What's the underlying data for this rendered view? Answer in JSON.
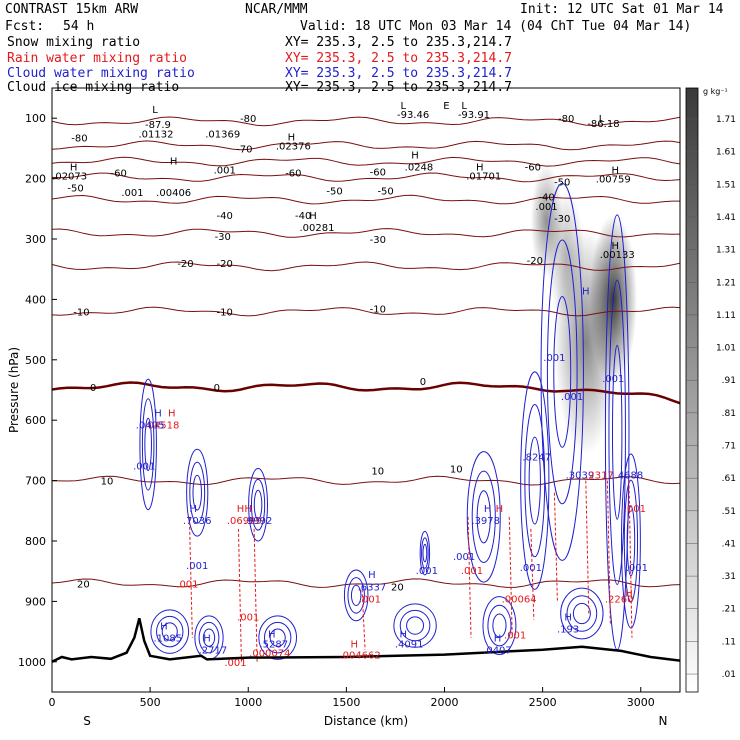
{
  "header": {
    "model": "CONTRAST 15km ARW",
    "center": "NCAR/MMM",
    "init": "Init: 12 UTC Sat 01 Mar 14",
    "fcst_label": "Fcst:",
    "fcst_value": "54 h",
    "valid": "Valid: 18 UTC Mon 03 Mar 14 (04 ChT Tue 04 Mar 14)"
  },
  "fields": [
    {
      "name": "Snow mixing ratio",
      "xy": "XY= 235.3,  2.5 to 235.3,214.7",
      "color": "#000000"
    },
    {
      "name": "Rain water mixing ratio",
      "xy": "XY= 235.3,  2.5 to 235.3,214.7",
      "color": "#e31a1c"
    },
    {
      "name": "Cloud water mixing ratio",
      "xy": "XY= 235.3,  2.5 to 235.3,214.7",
      "color": "#1f1fcf"
    },
    {
      "name": "Cloud ice mixing ratio",
      "xy": "XY= 235.3,  2.5 to 235.3,214.7",
      "color": "#000000"
    }
  ],
  "colors": {
    "temperature": "#7a1010",
    "freezing": "#6b0000",
    "rain": "#e31a1c",
    "cloud": "#1f1fcf",
    "terrain": "#000000"
  },
  "chart_data": {
    "type": "cross-section",
    "xlabel": "Distance (km)",
    "ylabel": "Pressure (hPa)",
    "xlim": [
      0,
      3200
    ],
    "ylim": [
      1050,
      50
    ],
    "x_ticks": [
      0,
      500,
      1000,
      1500,
      2000,
      2500,
      3000
    ],
    "y_ticks": [
      100,
      200,
      300,
      400,
      500,
      600,
      700,
      800,
      900,
      1000
    ],
    "left_end": "S",
    "right_end": "N",
    "colorbar": {
      "unit": "g kg⁻¹",
      "levels": [
        ".01",
        ".11",
        ".21",
        ".31",
        ".41",
        ".51",
        ".61",
        ".71",
        ".81",
        ".91",
        "1.01",
        "1.11",
        "1.21",
        "1.31",
        "1.41",
        "1.51",
        "1.61",
        "1.71"
      ]
    },
    "isotherms": [
      {
        "t": -80,
        "p": 105
      },
      {
        "t": -70,
        "p": 145
      },
      {
        "t": -60,
        "p": 172
      },
      {
        "t": -50,
        "p": 198
      },
      {
        "t": -40,
        "p": 235
      },
      {
        "t": -30,
        "p": 290
      },
      {
        "t": -20,
        "p": 345
      },
      {
        "t": -10,
        "p": 420
      },
      {
        "t": 0,
        "p": 545
      },
      {
        "t": 10,
        "p": 700
      },
      {
        "t": 20,
        "p": 870
      }
    ],
    "isotherm_labels": [
      {
        "text": "-80",
        "x": 1000,
        "p": 100
      },
      {
        "text": "-80",
        "x": 2620,
        "p": 100
      },
      {
        "text": "-80",
        "x": 140,
        "p": 132
      },
      {
        "text": "-70",
        "x": 980,
        "p": 150
      },
      {
        "text": "-60",
        "x": 1230,
        "p": 190
      },
      {
        "text": "-60",
        "x": 340,
        "p": 190
      },
      {
        "text": "-60",
        "x": 1660,
        "p": 188
      },
      {
        "text": "-60",
        "x": 2450,
        "p": 180
      },
      {
        "text": "-50",
        "x": 120,
        "p": 215
      },
      {
        "text": "-50",
        "x": 1440,
        "p": 220
      },
      {
        "text": "-50",
        "x": 1700,
        "p": 220
      },
      {
        "text": "-50",
        "x": 2600,
        "p": 205
      },
      {
        "text": "-40",
        "x": 880,
        "p": 260
      },
      {
        "text": "-40",
        "x": 1280,
        "p": 260
      },
      {
        "text": "-40",
        "x": 2520,
        "p": 230
      },
      {
        "text": "-30",
        "x": 870,
        "p": 295
      },
      {
        "text": "-30",
        "x": 1660,
        "p": 300
      },
      {
        "text": "-30",
        "x": 2600,
        "p": 265
      },
      {
        "text": "-20",
        "x": 680,
        "p": 340
      },
      {
        "text": "-20",
        "x": 880,
        "p": 340
      },
      {
        "text": "-20",
        "x": 2460,
        "p": 335
      },
      {
        "text": "-10",
        "x": 150,
        "p": 420
      },
      {
        "text": "-10",
        "x": 880,
        "p": 420
      },
      {
        "text": "-10",
        "x": 1660,
        "p": 415
      },
      {
        "text": "0",
        "x": 210,
        "p": 545
      },
      {
        "text": "0",
        "x": 840,
        "p": 545
      },
      {
        "text": "0",
        "x": 1890,
        "p": 535
      },
      {
        "text": "10",
        "x": 280,
        "p": 700
      },
      {
        "text": "10",
        "x": 1660,
        "p": 683
      },
      {
        "text": "10",
        "x": 2060,
        "p": 680
      },
      {
        "text": "20",
        "x": 160,
        "p": 870
      },
      {
        "text": "20",
        "x": 1760,
        "p": 875
      }
    ],
    "annotations": [
      {
        "text": "L",
        "x": 525,
        "p": 85,
        "color": "#000000"
      },
      {
        "text": "L",
        "x": 1790,
        "p": 78,
        "color": "#000000"
      },
      {
        "text": "E",
        "x": 2010,
        "p": 78,
        "color": "#000000"
      },
      {
        "text": "L",
        "x": 2100,
        "p": 78,
        "color": "#000000"
      },
      {
        "text": "L",
        "x": 2800,
        "p": 100,
        "color": "#000000"
      },
      {
        "text": "H",
        "x": 1220,
        "p": 130,
        "color": "#000000"
      },
      {
        "text": "H",
        "x": 110,
        "p": 180,
        "color": "#000000"
      },
      {
        "text": "H",
        "x": 620,
        "p": 170,
        "color": "#000000"
      },
      {
        "text": "H",
        "x": 1850,
        "p": 160,
        "color": "#000000"
      },
      {
        "text": "H",
        "x": 2180,
        "p": 180,
        "color": "#000000"
      },
      {
        "text": "H",
        "x": 2870,
        "p": 185,
        "color": "#000000"
      },
      {
        "text": "H",
        "x": 1330,
        "p": 260,
        "color": "#000000"
      },
      {
        "text": "H",
        "x": 2870,
        "p": 310,
        "color": "#000000"
      },
      {
        "text": "-93.46",
        "x": 1840,
        "p": 93,
        "color": "#000000"
      },
      {
        "text": "-93.91",
        "x": 2150,
        "p": 93,
        "color": "#000000"
      },
      {
        "text": "-86.18",
        "x": 2810,
        "p": 108,
        "color": "#000000"
      },
      {
        "text": "-87.9",
        "x": 540,
        "p": 110,
        "color": "#000000"
      },
      {
        "text": ".01132",
        "x": 530,
        "p": 125,
        "color": "#000000"
      },
      {
        "text": ".01369",
        "x": 870,
        "p": 125,
        "color": "#000000"
      },
      {
        "text": ".02376",
        "x": 1230,
        "p": 145,
        "color": "#000000"
      },
      {
        "text": ".0248",
        "x": 1870,
        "p": 180,
        "color": "#000000"
      },
      {
        "text": ".02073",
        "x": 90,
        "p": 195,
        "color": "#000000"
      },
      {
        "text": ".001",
        "x": 880,
        "p": 185,
        "color": "#000000"
      },
      {
        "text": ".01701",
        "x": 2200,
        "p": 195,
        "color": "#000000"
      },
      {
        "text": ".00759",
        "x": 2860,
        "p": 200,
        "color": "#000000"
      },
      {
        "text": ".00406",
        "x": 620,
        "p": 222,
        "color": "#000000"
      },
      {
        "text": ".001",
        "x": 410,
        "p": 222,
        "color": "#000000"
      },
      {
        "text": ".001",
        "x": 2520,
        "p": 245,
        "color": "#000000"
      },
      {
        "text": ".00281",
        "x": 1350,
        "p": 280,
        "color": "#000000"
      },
      {
        "text": ".00133",
        "x": 2880,
        "p": 325,
        "color": "#000000"
      },
      {
        "text": "H",
        "x": 2720,
        "p": 385,
        "color": "#1f1fcf"
      },
      {
        "text": "H",
        "x": 540,
        "p": 587,
        "color": "#1f1fcf"
      },
      {
        "text": "H",
        "x": 610,
        "p": 587,
        "color": "#e31a1c"
      },
      {
        "text": ".04518",
        "x": 560,
        "p": 607,
        "color": "#e31a1c"
      },
      {
        "text": ".0405",
        "x": 500,
        "p": 607,
        "color": "#1f1fcf"
      },
      {
        "text": ".001",
        "x": 2560,
        "p": 495,
        "color": "#1f1fcf"
      },
      {
        "text": ".001",
        "x": 2860,
        "p": 530,
        "color": "#1f1fcf"
      },
      {
        "text": ".001",
        "x": 2650,
        "p": 560,
        "color": "#1f1fcf"
      },
      {
        "text": ".001",
        "x": 470,
        "p": 675,
        "color": "#1f1fcf"
      },
      {
        "text": ".8247",
        "x": 2470,
        "p": 660,
        "color": "#1f1fcf"
      },
      {
        "text": ".3039",
        "x": 2690,
        "p": 690,
        "color": "#1f1fcf"
      },
      {
        "text": ".2317",
        "x": 2790,
        "p": 690,
        "color": "#e31a1c"
      },
      {
        "text": ".4688",
        "x": 2940,
        "p": 690,
        "color": "#1f1fcf"
      },
      {
        "text": "H",
        "x": 2220,
        "p": 745,
        "color": "#1f1fcf"
      },
      {
        "text": "H",
        "x": 2280,
        "p": 745,
        "color": "#e31a1c"
      },
      {
        "text": ".3978",
        "x": 2210,
        "p": 765,
        "color": "#1f1fcf"
      },
      {
        "text": ".7036",
        "x": 740,
        "p": 765,
        "color": "#1f1fcf"
      },
      {
        "text": "H",
        "x": 720,
        "p": 745,
        "color": "#1f1fcf"
      },
      {
        "text": "HH",
        "x": 980,
        "p": 745,
        "color": "#e31a1c"
      },
      {
        "text": ".06999",
        "x": 980,
        "p": 765,
        "color": "#e31a1c"
      },
      {
        "text": ".9992",
        "x": 1050,
        "p": 765,
        "color": "#1f1fcf"
      },
      {
        "text": ".001",
        "x": 2970,
        "p": 745,
        "color": "#e31a1c"
      },
      {
        "text": ".001",
        "x": 2100,
        "p": 825,
        "color": "#1f1fcf"
      },
      {
        "text": ".001",
        "x": 740,
        "p": 840,
        "color": "#1f1fcf"
      },
      {
        "text": ".001",
        "x": 1910,
        "p": 848,
        "color": "#1f1fcf"
      },
      {
        "text": ".001",
        "x": 2140,
        "p": 848,
        "color": "#e31a1c"
      },
      {
        "text": ".001",
        "x": 2440,
        "p": 843,
        "color": "#1f1fcf"
      },
      {
        "text": ".001",
        "x": 2980,
        "p": 843,
        "color": "#1f1fcf"
      },
      {
        "text": ".001",
        "x": 690,
        "p": 870,
        "color": "#e31a1c"
      },
      {
        "text": "H",
        "x": 1630,
        "p": 855,
        "color": "#1f1fcf"
      },
      {
        "text": ".6337",
        "x": 1630,
        "p": 875,
        "color": "#1f1fcf"
      },
      {
        "text": ".001",
        "x": 1620,
        "p": 895,
        "color": "#e31a1c"
      },
      {
        "text": ".00064",
        "x": 2380,
        "p": 895,
        "color": "#e31a1c"
      },
      {
        "text": ".2260",
        "x": 2890,
        "p": 895,
        "color": "#e31a1c"
      },
      {
        "text": "H",
        "x": 2940,
        "p": 885,
        "color": "#e31a1c"
      },
      {
        "text": ".001",
        "x": 1000,
        "p": 925,
        "color": "#e31a1c"
      },
      {
        "text": "H",
        "x": 570,
        "p": 940,
        "color": "#1f1fcf"
      },
      {
        "text": ".1085",
        "x": 590,
        "p": 960,
        "color": "#1f1fcf"
      },
      {
        "text": "H",
        "x": 790,
        "p": 960,
        "color": "#1f1fcf"
      },
      {
        "text": ".2717",
        "x": 820,
        "p": 980,
        "color": "#1f1fcf"
      },
      {
        "text": "H",
        "x": 1120,
        "p": 953,
        "color": "#1f1fcf"
      },
      {
        "text": ".5287",
        "x": 1130,
        "p": 970,
        "color": "#1f1fcf"
      },
      {
        "text": ".000074",
        "x": 1110,
        "p": 985,
        "color": "#e31a1c"
      },
      {
        "text": "H",
        "x": 1790,
        "p": 953,
        "color": "#1f1fcf"
      },
      {
        "text": ".4091",
        "x": 1820,
        "p": 970,
        "color": "#1f1fcf"
      },
      {
        "text": "H",
        "x": 1540,
        "p": 970,
        "color": "#e31a1c"
      },
      {
        "text": ".004662",
        "x": 1570,
        "p": 988,
        "color": "#e31a1c"
      },
      {
        "text": "H",
        "x": 2270,
        "p": 960,
        "color": "#1f1fcf"
      },
      {
        "text": ".0407",
        "x": 2270,
        "p": 980,
        "color": "#1f1fcf"
      },
      {
        "text": ".001",
        "x": 2360,
        "p": 955,
        "color": "#e31a1c"
      },
      {
        "text": "H",
        "x": 2630,
        "p": 925,
        "color": "#1f1fcf"
      },
      {
        "text": ".193",
        "x": 2630,
        "p": 945,
        "color": "#1f1fcf"
      },
      {
        "text": ".001",
        "x": 935,
        "p": 1000,
        "color": "#e31a1c"
      }
    ],
    "terrain": [
      [
        0,
        1000
      ],
      [
        50,
        992
      ],
      [
        100,
        996
      ],
      [
        200,
        992
      ],
      [
        300,
        995
      ],
      [
        380,
        985
      ],
      [
        420,
        960
      ],
      [
        445,
        928
      ],
      [
        470,
        965
      ],
      [
        500,
        990
      ],
      [
        600,
        996
      ],
      [
        760,
        990
      ],
      [
        790,
        996
      ],
      [
        1000,
        993
      ],
      [
        1500,
        992
      ],
      [
        2000,
        988
      ],
      [
        2500,
        980
      ],
      [
        2700,
        975
      ],
      [
        2900,
        982
      ],
      [
        3050,
        992
      ],
      [
        3200,
        998
      ]
    ],
    "cloud_ice": [
      {
        "x": 2520,
        "p": 270,
        "r": 30,
        "intensity": 0.5
      },
      {
        "x": 2860,
        "p": 400,
        "r": 45,
        "intensity": 0.9
      },
      {
        "x": 2720,
        "p": 470,
        "r": 60,
        "intensity": 0.55
      },
      {
        "x": 2620,
        "p": 330,
        "r": 35,
        "intensity": 0.35
      }
    ]
  }
}
